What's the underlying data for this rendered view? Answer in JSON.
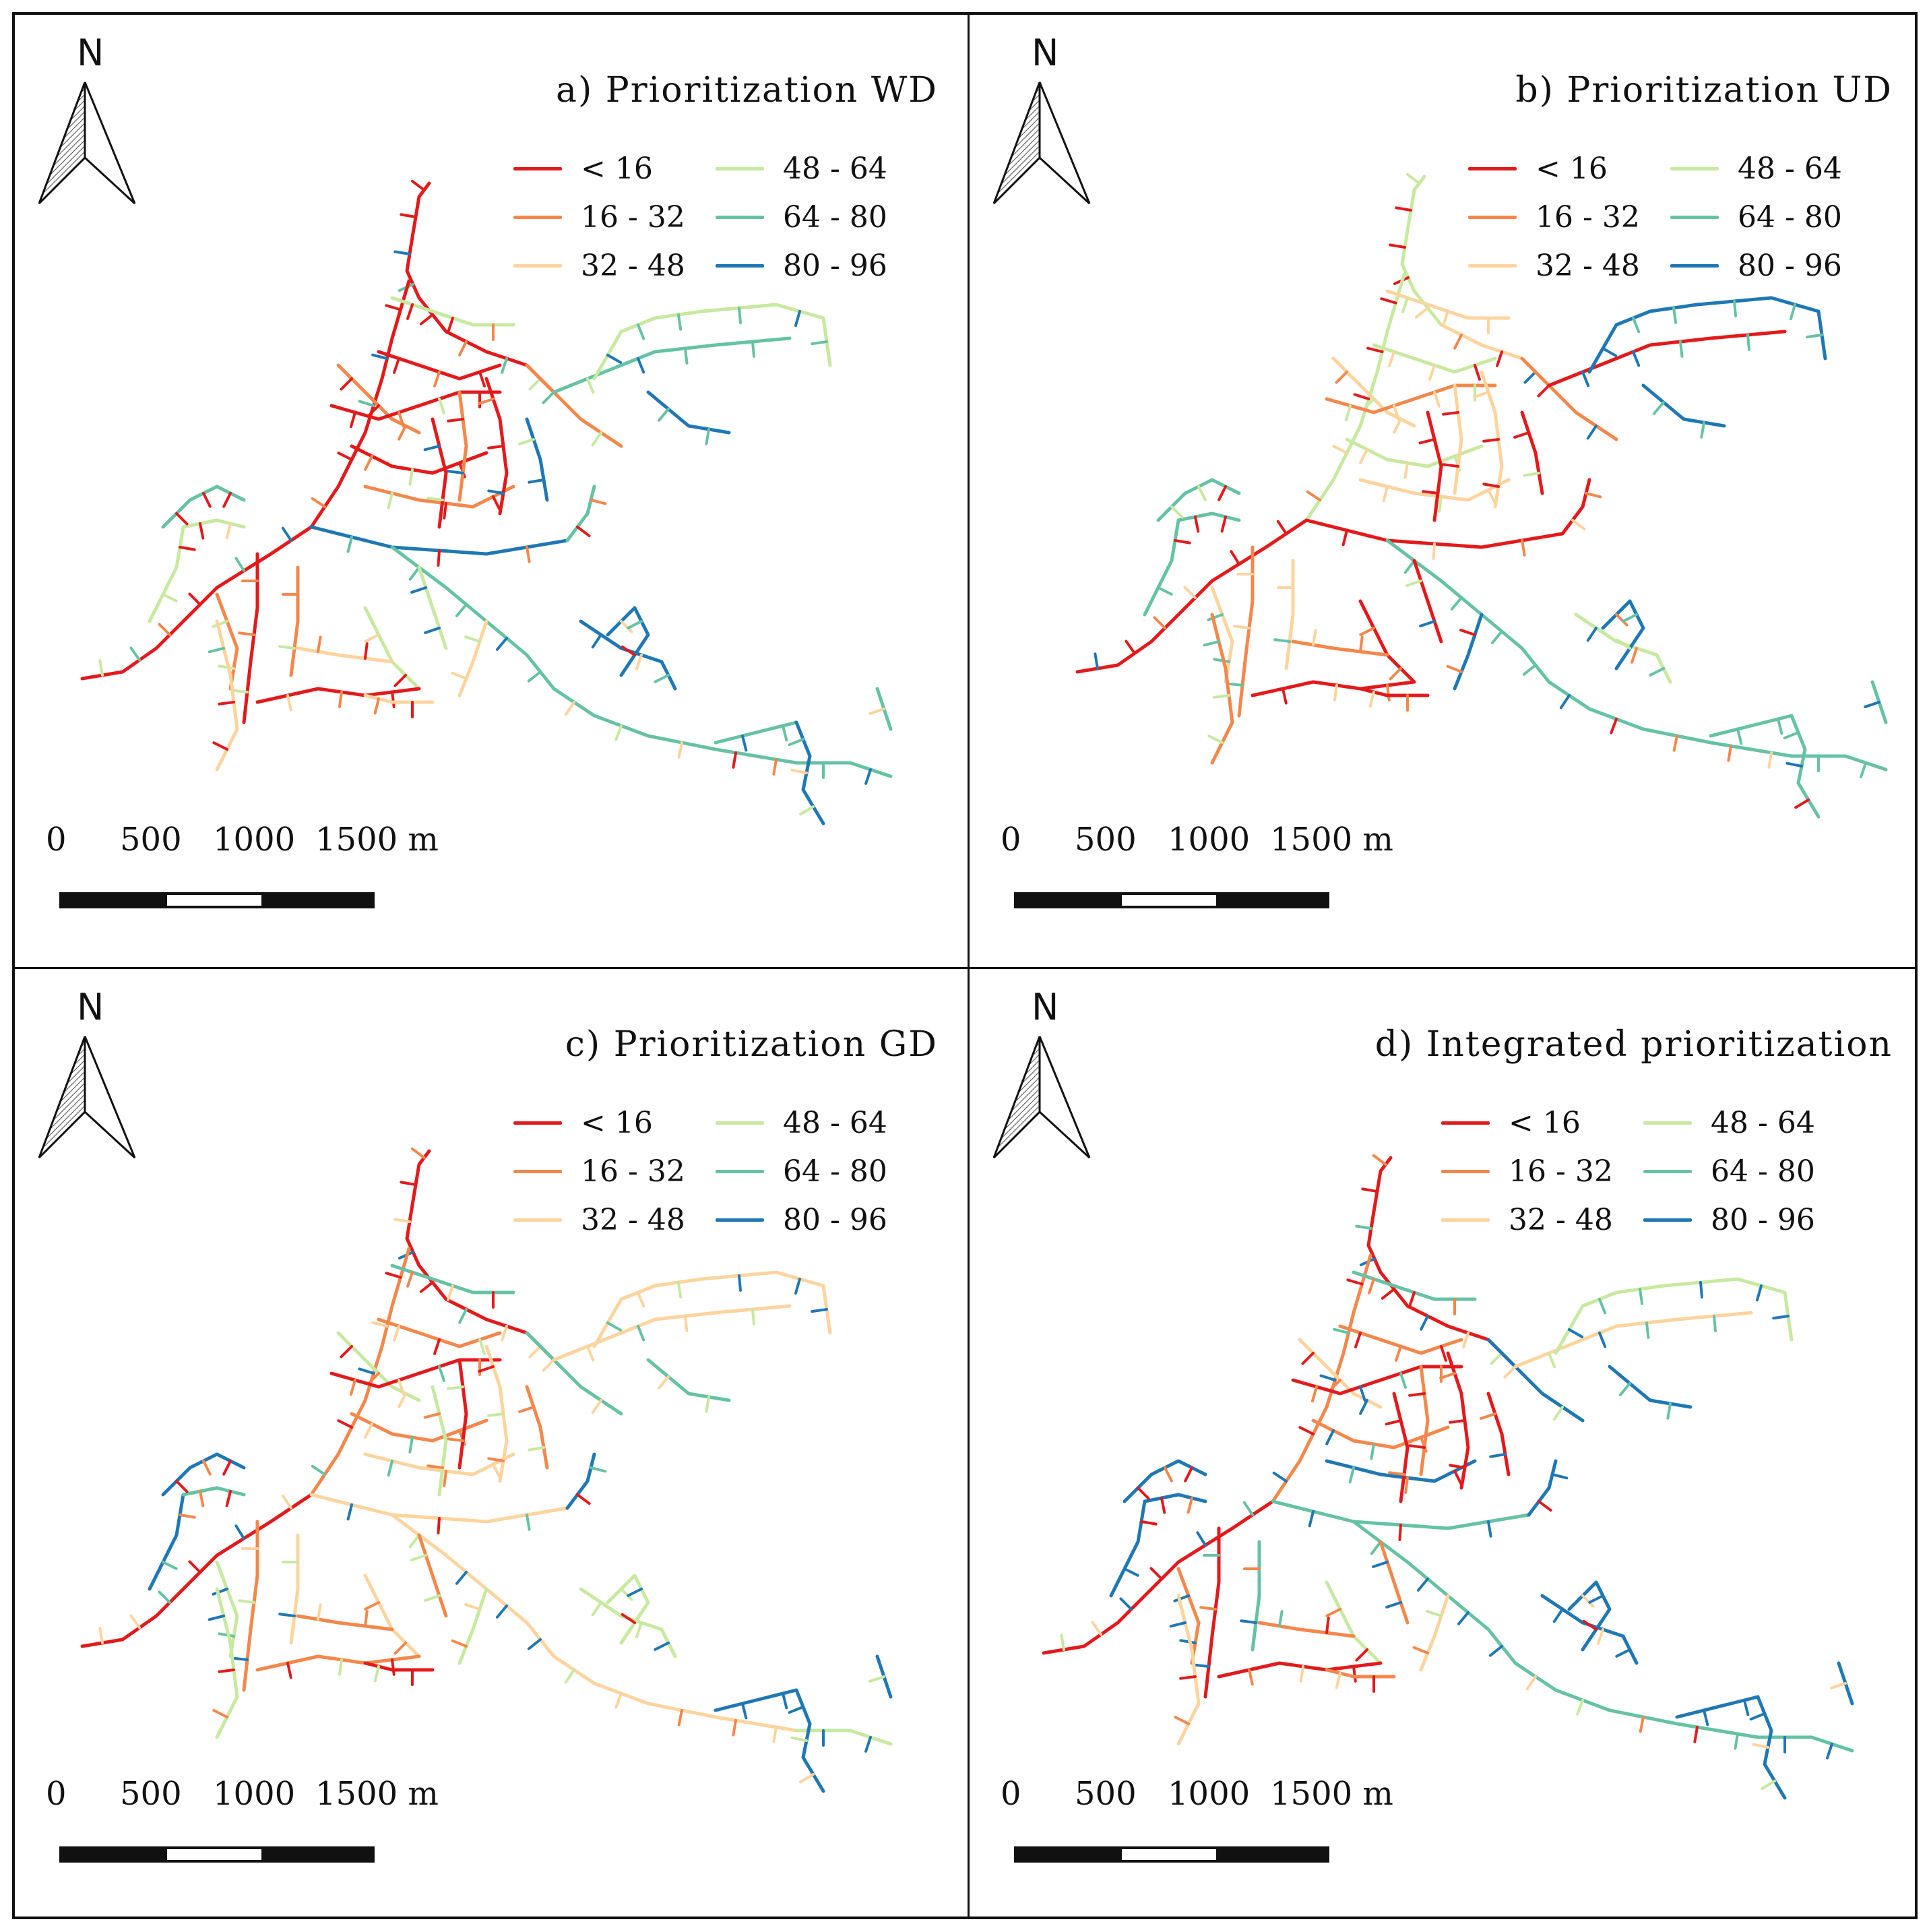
{
  "north_label": "N",
  "panels": [
    {
      "title": "a) Prioritization WD"
    },
    {
      "title": "b) Prioritization UD"
    },
    {
      "title": "c) Prioritization GD"
    },
    {
      "title": "d) Integrated prioritization"
    }
  ],
  "legend": [
    {
      "label": "< 16",
      "color": "#e31a1c"
    },
    {
      "label": "16 - 32",
      "color": "#f4874b"
    },
    {
      "label": "32 - 48",
      "color": "#fdd49e"
    },
    {
      "label": "48 - 64",
      "color": "#c7e9a0"
    },
    {
      "label": "64 - 80",
      "color": "#66c2a5"
    },
    {
      "label": "80 - 96",
      "color": "#1f78b4"
    }
  ],
  "scale": {
    "ticks": [
      "0",
      "500",
      "1000",
      "1500 m"
    ]
  }
}
